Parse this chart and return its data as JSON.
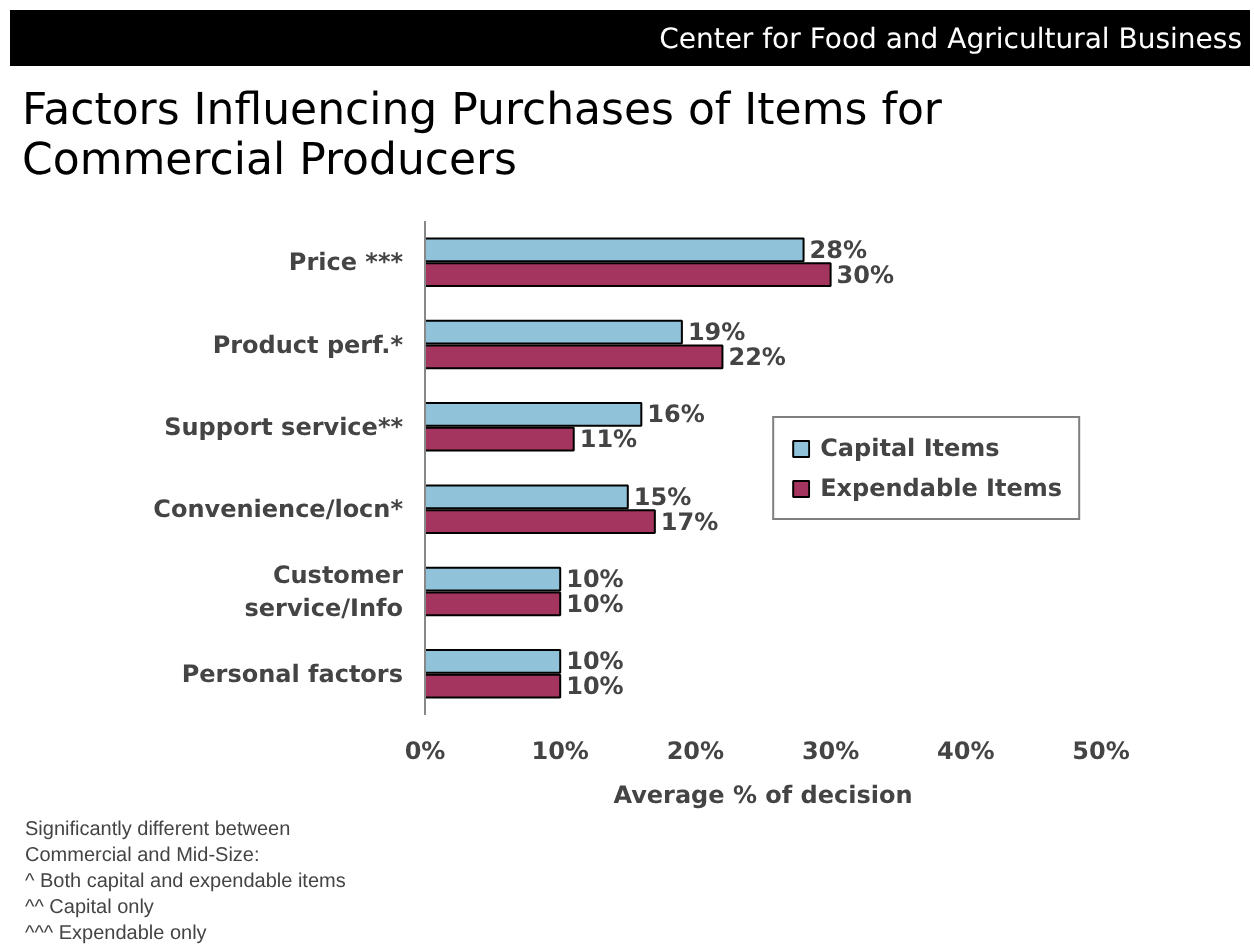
{
  "chart_data": {
    "type": "bar",
    "orientation": "horizontal",
    "title": "Factors Influencing Purchases of Items for Commercial Producers",
    "xlabel": "Average % of decision",
    "categories": [
      "Price ***",
      "Product perf.*",
      "Support service**",
      "Convenience/locn*",
      "Customer service/Info",
      "Personal factors"
    ],
    "series": [
      {
        "name": "Capital Items",
        "color": "#90c3d9",
        "values": [
          28,
          19,
          16,
          15,
          10,
          10
        ],
        "value_labels": [
          "28%",
          "19%",
          "16%",
          "15%",
          "10%",
          "10%"
        ]
      },
      {
        "name": "Expendable Items",
        "color": "#a3355e",
        "values": [
          30,
          22,
          11,
          17,
          10,
          10
        ],
        "value_labels": [
          "30%",
          "22%",
          "11%",
          "17%",
          "10%",
          "10%"
        ]
      }
    ],
    "xlim": [
      0,
      50
    ],
    "xticks": [
      {
        "value": 0,
        "label": "0%"
      },
      {
        "value": 10,
        "label": "10%"
      },
      {
        "value": 20,
        "label": "20%"
      },
      {
        "value": 30,
        "label": "30%"
      },
      {
        "value": 40,
        "label": "40%"
      },
      {
        "value": 50,
        "label": "50%"
      }
    ],
    "grid": false,
    "legend": "right",
    "annotations": [
      "Center for Food and Agricultural Business",
      "Significantly different between Commercial and Mid-Size:",
      "^ Both capital and expendable items",
      "^^ Capital only",
      "^^^ Expendable only"
    ]
  }
}
